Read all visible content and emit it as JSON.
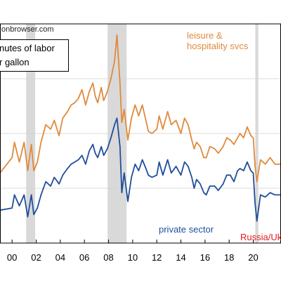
{
  "source_text": "onbrowser.com",
  "legend_box": {
    "line1": "nutes of labor",
    "line2": "r gallon"
  },
  "annotations": {
    "leisure": [
      "leisure &",
      "hospitality svcs"
    ],
    "private": "private sector",
    "russia": "Russia/Ukr"
  },
  "colors": {
    "leisure": "#e08a3c",
    "private": "#1f4e9c",
    "recession": "#d9d9d9",
    "event": "#e0201f"
  },
  "chart_data": {
    "type": "line",
    "title": "",
    "xlabel": "",
    "ylabel": "",
    "xlim": [
      1999.0,
      2022.3
    ],
    "ylim": [
      0,
      10
    ],
    "x_ticks": [
      "00",
      "02",
      "04",
      "06",
      "08",
      "10",
      "12",
      "14",
      "16",
      "18",
      "20"
    ],
    "x_tick_values": [
      2000,
      2002,
      2004,
      2006,
      2008,
      2010,
      2012,
      2014,
      2016,
      2018,
      2020
    ],
    "grid": "horizontal",
    "recessions": [
      [
        2001.17,
        2001.92
      ],
      [
        2007.92,
        2009.5
      ],
      [
        2020.17,
        2020.42
      ]
    ],
    "series": [
      {
        "name": "leisure & hospitality svcs",
        "x": [
          1999.0,
          2000.0,
          2000.2,
          2000.6,
          2001.0,
          2001.3,
          2001.6,
          2001.8,
          2002.1,
          2002.4,
          2002.8,
          2003.2,
          2003.5,
          2003.9,
          2004.2,
          2004.6,
          2004.9,
          2005.2,
          2005.5,
          2005.8,
          2006.1,
          2006.4,
          2006.7,
          2006.9,
          2007.1,
          2007.4,
          2007.6,
          2007.9,
          2008.2,
          2008.5,
          2008.7,
          2008.95,
          2009.1,
          2009.3,
          2009.6,
          2009.9,
          2010.2,
          2010.5,
          2010.8,
          2011.1,
          2011.3,
          2011.6,
          2012.0,
          2012.2,
          2012.5,
          2012.9,
          2013.2,
          2013.6,
          2014.0,
          2014.3,
          2014.6,
          2014.9,
          2015.1,
          2015.3,
          2015.6,
          2015.9,
          2016.1,
          2016.4,
          2016.8,
          2017.1,
          2017.5,
          2017.8,
          2018.1,
          2018.4,
          2018.7,
          2018.9,
          2019.2,
          2019.5,
          2019.8,
          2020.0,
          2020.15,
          2020.3,
          2020.6,
          2021.0,
          2021.4,
          2021.8,
          2022.3
        ],
        "values": [
          3.2,
          3.9,
          4.6,
          3.7,
          4.6,
          3.3,
          4.5,
          3.3,
          3.7,
          4.6,
          5.4,
          5.2,
          5.6,
          4.9,
          5.7,
          6.0,
          6.3,
          6.4,
          6.6,
          7.0,
          6.3,
          6.9,
          7.3,
          6.7,
          6.4,
          7.1,
          6.5,
          6.9,
          7.5,
          8.3,
          9.5,
          7.3,
          5.5,
          6.1,
          4.7,
          5.7,
          6.3,
          5.8,
          6.3,
          5.6,
          5.1,
          5.0,
          5.2,
          5.8,
          5.2,
          6.0,
          5.4,
          5.6,
          5.0,
          5.7,
          5.4,
          4.7,
          4.3,
          4.6,
          4.4,
          3.9,
          3.9,
          4.4,
          4.3,
          4.1,
          4.4,
          4.8,
          4.7,
          4.5,
          4.8,
          5.0,
          4.8,
          5.3,
          4.9,
          4.8,
          3.5,
          2.8,
          3.8,
          3.6,
          3.9,
          3.6,
          3.6
        ]
      },
      {
        "name": "private sector",
        "x": [
          1999.0,
          2000.0,
          2000.2,
          2000.6,
          2001.0,
          2001.3,
          2001.6,
          2001.8,
          2002.1,
          2002.4,
          2002.8,
          2003.2,
          2003.5,
          2003.9,
          2004.2,
          2004.6,
          2004.9,
          2005.2,
          2005.5,
          2005.8,
          2006.1,
          2006.4,
          2006.7,
          2006.9,
          2007.1,
          2007.4,
          2007.6,
          2007.9,
          2008.2,
          2008.5,
          2008.7,
          2008.95,
          2009.1,
          2009.3,
          2009.6,
          2009.9,
          2010.2,
          2010.5,
          2010.8,
          2011.1,
          2011.3,
          2011.6,
          2012.0,
          2012.2,
          2012.5,
          2012.9,
          2013.2,
          2013.6,
          2014.0,
          2014.3,
          2014.6,
          2014.9,
          2015.1,
          2015.3,
          2015.6,
          2015.9,
          2016.1,
          2016.4,
          2016.8,
          2017.1,
          2017.5,
          2017.8,
          2018.1,
          2018.4,
          2018.7,
          2018.9,
          2019.2,
          2019.5,
          2019.8,
          2020.0,
          2020.15,
          2020.3,
          2020.6,
          2021.0,
          2021.4,
          2021.8,
          2022.3
        ],
        "values": [
          1.5,
          1.6,
          2.2,
          1.7,
          2.2,
          1.2,
          2.2,
          1.3,
          1.6,
          2.2,
          2.8,
          2.6,
          3.0,
          2.7,
          3.1,
          3.4,
          3.6,
          3.7,
          3.8,
          4.0,
          3.6,
          4.2,
          4.5,
          4.1,
          3.9,
          4.4,
          4.0,
          4.3,
          4.8,
          5.4,
          5.7,
          4.4,
          2.3,
          3.2,
          1.9,
          3.0,
          3.6,
          3.3,
          3.8,
          3.4,
          3.1,
          3.0,
          3.1,
          3.7,
          3.1,
          3.8,
          3.2,
          3.5,
          3.1,
          3.7,
          3.5,
          3.0,
          2.5,
          2.9,
          2.7,
          2.3,
          2.2,
          2.6,
          2.6,
          2.4,
          2.7,
          3.1,
          3.1,
          2.8,
          3.3,
          3.4,
          3.3,
          3.7,
          3.3,
          3.2,
          1.8,
          1.0,
          2.2,
          2.1,
          2.3,
          2.2,
          2.2
        ]
      }
    ]
  }
}
